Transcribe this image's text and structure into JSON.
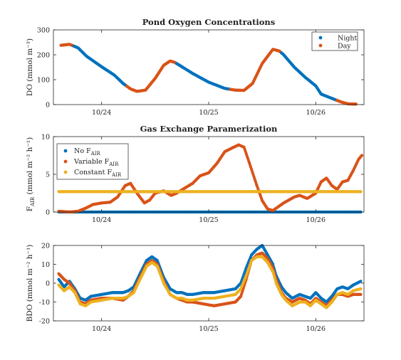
{
  "chart_data": [
    {
      "type": "scatter",
      "title": "Pond Oxygen Concentrations",
      "ylabel": "DO (mmol m⁻³)",
      "xlabel": "",
      "x_ticks": [
        {
          "label": "10/24",
          "x": 1.0
        },
        {
          "label": "10/25",
          "x": 2.0
        },
        {
          "label": "10/26",
          "x": 3.0
        }
      ],
      "xlim": [
        0.55,
        3.45
      ],
      "ylim": [
        0,
        300
      ],
      "y_ticks": [
        0,
        100,
        200,
        300
      ],
      "legend": "top-right",
      "colors": {
        "Night": "#0072BD",
        "Day": "#D95319"
      },
      "series": [
        {
          "name": "Night"
        },
        {
          "name": "Day"
        }
      ],
      "points": [
        {
          "x": 0.62,
          "y": 238,
          "s": "Day"
        },
        {
          "x": 0.7,
          "y": 242,
          "s": "Day"
        },
        {
          "x": 0.78,
          "y": 228,
          "s": "Night"
        },
        {
          "x": 0.86,
          "y": 194,
          "s": "Night"
        },
        {
          "x": 1.0,
          "y": 152,
          "s": "Night"
        },
        {
          "x": 1.12,
          "y": 118,
          "s": "Night"
        },
        {
          "x": 1.2,
          "y": 85,
          "s": "Night"
        },
        {
          "x": 1.27,
          "y": 63,
          "s": "Day"
        },
        {
          "x": 1.33,
          "y": 53,
          "s": "Day"
        },
        {
          "x": 1.41,
          "y": 58,
          "s": "Day"
        },
        {
          "x": 1.5,
          "y": 105,
          "s": "Day"
        },
        {
          "x": 1.58,
          "y": 158,
          "s": "Day"
        },
        {
          "x": 1.64,
          "y": 175,
          "s": "Day"
        },
        {
          "x": 1.68,
          "y": 170,
          "s": "Day"
        },
        {
          "x": 1.72,
          "y": 160,
          "s": "Night"
        },
        {
          "x": 1.85,
          "y": 125,
          "s": "Night"
        },
        {
          "x": 2.0,
          "y": 90,
          "s": "Night"
        },
        {
          "x": 2.15,
          "y": 65,
          "s": "Night"
        },
        {
          "x": 2.25,
          "y": 58,
          "s": "Day"
        },
        {
          "x": 2.33,
          "y": 57,
          "s": "Day"
        },
        {
          "x": 2.41,
          "y": 85,
          "s": "Day"
        },
        {
          "x": 2.5,
          "y": 165,
          "s": "Day"
        },
        {
          "x": 2.6,
          "y": 222,
          "s": "Day"
        },
        {
          "x": 2.66,
          "y": 215,
          "s": "Day"
        },
        {
          "x": 2.7,
          "y": 200,
          "s": "Night"
        },
        {
          "x": 2.8,
          "y": 150,
          "s": "Night"
        },
        {
          "x": 2.9,
          "y": 110,
          "s": "Night"
        },
        {
          "x": 3.0,
          "y": 75,
          "s": "Night"
        },
        {
          "x": 3.05,
          "y": 42,
          "s": "Night"
        },
        {
          "x": 3.15,
          "y": 25,
          "s": "Night"
        },
        {
          "x": 3.24,
          "y": 10,
          "s": "Day"
        },
        {
          "x": 3.3,
          "y": 3,
          "s": "Day"
        },
        {
          "x": 3.38,
          "y": 2,
          "s": "Day"
        }
      ]
    },
    {
      "type": "scatter",
      "title": "Gas Exchange Paramerization",
      "ylabel": "F_AIR (mmol m⁻² h⁻¹)",
      "xlabel": "",
      "x_ticks": [
        {
          "label": "10/24",
          "x": 1.0
        },
        {
          "label": "10/25",
          "x": 2.0
        },
        {
          "label": "10/26",
          "x": 3.0
        }
      ],
      "xlim": [
        0.55,
        3.45
      ],
      "ylim": [
        0,
        10
      ],
      "y_ticks": [
        0,
        5,
        10
      ],
      "legend": "top-left",
      "series": [
        {
          "name_main": "No F",
          "name_sub": "AIR",
          "color": "#0072BD",
          "x": [
            0.6,
            3.42
          ],
          "y": [
            0.0,
            0.0
          ]
        },
        {
          "name_main": "Variable F",
          "name_sub": "AIR",
          "color": "#D95319",
          "x": [
            0.6,
            0.7,
            0.78,
            0.85,
            0.92,
            1.0,
            1.08,
            1.15,
            1.22,
            1.27,
            1.33,
            1.4,
            1.45,
            1.5,
            1.58,
            1.65,
            1.7,
            1.78,
            1.85,
            1.92,
            2.0,
            2.08,
            2.15,
            2.22,
            2.28,
            2.33,
            2.38,
            2.45,
            2.5,
            2.55,
            2.6,
            2.7,
            2.8,
            2.85,
            2.92,
            3.0,
            3.05,
            3.1,
            3.15,
            3.2,
            3.25,
            3.3,
            3.35,
            3.4,
            3.43
          ],
          "y": [
            0.1,
            0.0,
            0.1,
            0.5,
            1.0,
            1.2,
            1.3,
            2.0,
            3.5,
            3.8,
            2.5,
            1.2,
            1.6,
            2.5,
            2.8,
            2.2,
            2.5,
            3.2,
            3.8,
            4.8,
            5.2,
            6.5,
            8.0,
            8.5,
            8.9,
            8.6,
            6.5,
            3.5,
            1.5,
            0.4,
            0.2,
            1.2,
            2.0,
            2.2,
            1.8,
            2.5,
            4.0,
            4.5,
            3.5,
            3.0,
            4.0,
            4.2,
            5.5,
            7.0,
            7.5
          ]
        },
        {
          "name_main": "Constant F",
          "name_sub": "AIR",
          "color": "#EDB120",
          "x": [
            0.6,
            3.42
          ],
          "y": [
            2.7,
            2.7
          ]
        }
      ]
    },
    {
      "type": "scatter",
      "title": "",
      "ylabel": "BDO (mmol m⁻² h⁻¹)",
      "xlabel": "",
      "x_ticks": [
        {
          "label": "10/24",
          "x": 1.0
        },
        {
          "label": "10/25",
          "x": 2.0
        },
        {
          "label": "10/26",
          "x": 3.0
        }
      ],
      "xlim": [
        0.55,
        3.45
      ],
      "ylim": [
        -20,
        20
      ],
      "y_ticks": [
        -20,
        -10,
        0,
        10,
        20
      ],
      "series": [
        {
          "name": "No F_AIR",
          "color": "#0072BD",
          "x": [
            0.6,
            0.65,
            0.7,
            0.75,
            0.8,
            0.85,
            0.9,
            1.0,
            1.1,
            1.2,
            1.25,
            1.3,
            1.35,
            1.42,
            1.47,
            1.52,
            1.58,
            1.64,
            1.7,
            1.75,
            1.8,
            1.85,
            1.95,
            2.05,
            2.15,
            2.25,
            2.3,
            2.35,
            2.4,
            2.45,
            2.5,
            2.55,
            2.6,
            2.63,
            2.68,
            2.72,
            2.78,
            2.85,
            2.9,
            2.95,
            3.0,
            3.05,
            3.1,
            3.15,
            3.2,
            3.25,
            3.3,
            3.35,
            3.42
          ],
          "y": [
            2,
            -2,
            1,
            -3,
            -8,
            -9,
            -7,
            -6,
            -5,
            -5,
            -4,
            -2,
            4,
            12,
            14,
            12,
            3,
            -3,
            -5,
            -5,
            -6,
            -6,
            -5,
            -5,
            -4,
            -3,
            0,
            8,
            15,
            18,
            20,
            15,
            10,
            4,
            -2,
            -5,
            -8,
            -6,
            -7,
            -8,
            -5,
            -8,
            -10,
            -7,
            -3,
            -2,
            -3,
            -1,
            1
          ]
        },
        {
          "name": "Variable F_AIR",
          "color": "#D95319",
          "x": [
            0.6,
            0.65,
            0.7,
            0.75,
            0.8,
            0.85,
            0.9,
            1.0,
            1.1,
            1.2,
            1.25,
            1.3,
            1.35,
            1.42,
            1.47,
            1.52,
            1.58,
            1.64,
            1.7,
            1.75,
            1.8,
            1.85,
            1.95,
            2.05,
            2.15,
            2.25,
            2.3,
            2.35,
            2.4,
            2.45,
            2.5,
            2.55,
            2.6,
            2.63,
            2.68,
            2.72,
            2.78,
            2.85,
            2.9,
            2.95,
            3.0,
            3.05,
            3.1,
            3.15,
            3.2,
            3.25,
            3.3,
            3.35,
            3.42
          ],
          "y": [
            5,
            2,
            0,
            -4,
            -10,
            -11,
            -9,
            -8,
            -8,
            -9,
            -7,
            -4,
            2,
            10,
            12,
            10,
            1,
            -6,
            -8,
            -9,
            -10,
            -10,
            -11,
            -12,
            -11,
            -10,
            -7,
            2,
            12,
            15,
            16,
            13,
            8,
            2,
            -5,
            -8,
            -10,
            -8,
            -9,
            -11,
            -8,
            -10,
            -12,
            -9,
            -6,
            -6,
            -7,
            -6,
            -6
          ]
        },
        {
          "name": "Constant F_AIR",
          "color": "#EDB120",
          "x": [
            0.6,
            0.65,
            0.7,
            0.75,
            0.8,
            0.85,
            0.9,
            1.0,
            1.1,
            1.2,
            1.25,
            1.3,
            1.35,
            1.42,
            1.47,
            1.52,
            1.58,
            1.64,
            1.7,
            1.75,
            1.8,
            1.85,
            1.95,
            2.05,
            2.15,
            2.25,
            2.3,
            2.35,
            2.4,
            2.45,
            2.5,
            2.55,
            2.6,
            2.63,
            2.68,
            2.72,
            2.78,
            2.85,
            2.9,
            2.95,
            3.0,
            3.05,
            3.1,
            3.15,
            3.2,
            3.25,
            3.3,
            3.35,
            3.42
          ],
          "y": [
            -1,
            -4,
            -2,
            -5,
            -11,
            -12,
            -10,
            -9,
            -8,
            -8,
            -7,
            -5,
            1,
            9,
            11,
            9,
            0,
            -6,
            -8,
            -8,
            -9,
            -9,
            -8,
            -8,
            -7,
            -6,
            -3,
            4,
            12,
            14,
            14,
            11,
            6,
            0,
            -6,
            -9,
            -12,
            -10,
            -10,
            -12,
            -9,
            -11,
            -13,
            -10,
            -6,
            -5,
            -6,
            -4,
            -3
          ]
        }
      ]
    }
  ]
}
